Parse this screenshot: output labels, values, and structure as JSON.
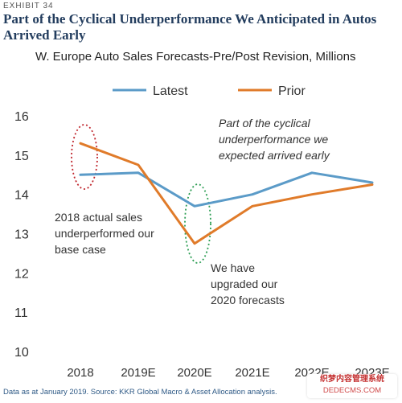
{
  "header": {
    "exhibit": "EXHIBIT 34",
    "title": "Part of the Cyclical Underperformance We Anticipated in Autos Arrived Early"
  },
  "chart_data": {
    "type": "line",
    "title": "W. Europe Auto Sales Forecasts-Pre/Post Revision, Millions",
    "categories": [
      "2018",
      "2019E",
      "2020E",
      "2021E",
      "2022E",
      "2023E"
    ],
    "series": [
      {
        "name": "Latest",
        "color": "#5b9bc8",
        "values": [
          14.5,
          14.55,
          13.7,
          14.0,
          14.55,
          14.3
        ]
      },
      {
        "name": "Prior",
        "color": "#e07b2a",
        "values": [
          15.3,
          14.75,
          12.75,
          13.7,
          14.0,
          14.25
        ]
      }
    ],
    "ylim": [
      10,
      16
    ],
    "yticks": [
      10,
      11,
      12,
      13,
      14,
      15,
      16
    ],
    "grid": false,
    "legend": "top",
    "annotations": {
      "top": [
        "Part of the cyclical",
        "underperformance we",
        "expected arrived early"
      ],
      "left": [
        "2018 actual sales",
        "underperformed our",
        "base case"
      ],
      "bottom": [
        "We have",
        "upgraded our",
        "2020 forecasts"
      ]
    },
    "highlight_colors": {
      "red": "#c0262d",
      "green": "#2e9e55"
    }
  },
  "footer": {
    "source": "Data as at January 2019. Source: KKR Global Macro & Asset Allocation analysis."
  },
  "watermark": {
    "line1": "织梦内容管理系统",
    "line2": "DEDECMS.COM"
  }
}
